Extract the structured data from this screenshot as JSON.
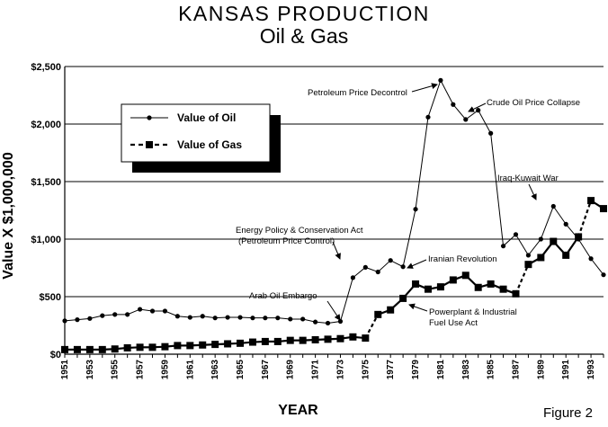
{
  "title": "KANSAS  PRODUCTION",
  "subtitle": "Oil & Gas",
  "figure_label": "Figure 2",
  "chart_data": {
    "type": "line",
    "xlabel": "YEAR",
    "ylabel": "Value X $1,000,000",
    "xlim": [
      1951,
      1994
    ],
    "ylim": [
      0,
      2500
    ],
    "grid": "horizontal",
    "legend_position": "upper-left",
    "y_ticks": [
      "$0",
      "$500",
      "$1,000",
      "$1,500",
      "$2,000",
      "$2,500"
    ],
    "x_ticks": [
      "1951",
      "1953",
      "1955",
      "1957",
      "1959",
      "1961",
      "1963",
      "1965",
      "1967",
      "1969",
      "1971",
      "1973",
      "1975",
      "1977",
      "1979",
      "1981",
      "1983",
      "1985",
      "1987",
      "1989",
      "1991",
      "1993"
    ],
    "x": [
      1951,
      1952,
      1953,
      1954,
      1955,
      1956,
      1957,
      1958,
      1959,
      1960,
      1961,
      1962,
      1963,
      1964,
      1965,
      1966,
      1967,
      1968,
      1969,
      1970,
      1971,
      1972,
      1973,
      1974,
      1975,
      1976,
      1977,
      1978,
      1979,
      1980,
      1981,
      1982,
      1983,
      1984,
      1985,
      1986,
      1987,
      1988,
      1989,
      1990,
      1991,
      1992,
      1993,
      1994
    ],
    "series": [
      {
        "name": "Value  of  Oil",
        "marker": "circle",
        "line": "solid",
        "values": [
          290,
          300,
          310,
          335,
          345,
          345,
          390,
          375,
          375,
          330,
          320,
          330,
          315,
          320,
          320,
          315,
          315,
          315,
          305,
          305,
          280,
          270,
          285,
          665,
          755,
          715,
          815,
          760,
          1260,
          2060,
          2380,
          2170,
          2040,
          2120,
          1920,
          940,
          1040,
          860,
          1000,
          1285,
          1130,
          1000,
          830,
          690
        ]
      },
      {
        "name": "Value  of  Gas",
        "marker": "square",
        "line": "dashed",
        "values": [
          40,
          40,
          40,
          40,
          45,
          55,
          60,
          60,
          65,
          75,
          75,
          80,
          85,
          90,
          95,
          105,
          110,
          110,
          120,
          120,
          125,
          130,
          135,
          150,
          140,
          345,
          385,
          485,
          610,
          565,
          585,
          645,
          685,
          580,
          610,
          565,
          525,
          780,
          840,
          980,
          860,
          1020,
          1335,
          1265
        ]
      }
    ],
    "annotations": [
      {
        "text": "Petroleum Price Decontrol",
        "point": [
          1981,
          2380
        ]
      },
      {
        "text": "Crude Oil Price Collapse",
        "point": [
          1985,
          1920
        ]
      },
      {
        "text": "Iraq-Kuwait War",
        "point": [
          1990,
          1285
        ]
      },
      {
        "text": "Energy Policy & Conservation Act",
        "point": [
          1975,
          755
        ]
      },
      {
        "text": "(Petroleum Price Control)",
        "point": null
      },
      {
        "text": "Iranian Revolution",
        "point": [
          1979,
          760
        ]
      },
      {
        "text": "Arab Oil Embargo",
        "point": [
          1973,
          285
        ]
      },
      {
        "text": "Powerplant & Industrial",
        "point": [
          1978,
          485
        ]
      },
      {
        "text": "Fuel Use Act",
        "point": null
      }
    ]
  }
}
